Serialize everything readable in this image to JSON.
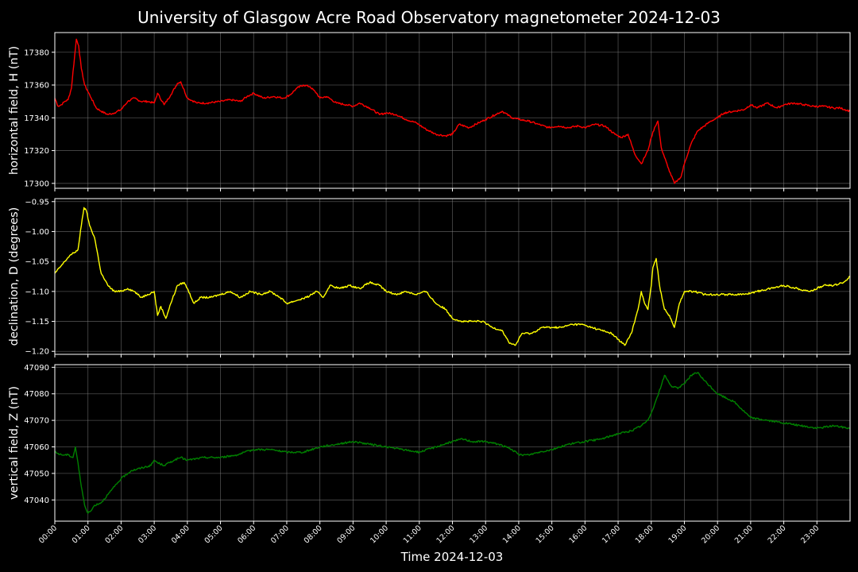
{
  "figure": {
    "title": "University of Glasgow Acre Road Observatory magnetometer 2024-12-03",
    "xlabel": "Time 2024-12-03"
  },
  "colors": {
    "background": "#000000",
    "axis": "#ffffff",
    "grid": "#808080",
    "h_line": "#ff0000",
    "d_line": "#ffff00",
    "z_line": "#008000"
  },
  "chart_data": [
    {
      "type": "line",
      "ylabel": "horizontal field, H (nT)",
      "xlim": [
        0,
        24
      ],
      "ylim": [
        17297,
        17392
      ],
      "yticks": [
        17300,
        17320,
        17340,
        17360,
        17380
      ],
      "ytick_labels": [
        "17300",
        "17320",
        "17340",
        "17360",
        "17380"
      ],
      "xticks": [
        0,
        1,
        2,
        3,
        4,
        5,
        6,
        7,
        8,
        9,
        10,
        11,
        12,
        13,
        14,
        15,
        16,
        17,
        18,
        19,
        20,
        21,
        22,
        23
      ],
      "xtick_labels": [],
      "grid": true,
      "series": [
        {
          "color": "#ff0000",
          "x": [
            0,
            0.1,
            0.2,
            0.3,
            0.4,
            0.5,
            0.6,
            0.65,
            0.72,
            0.8,
            0.9,
            1.0,
            1.1,
            1.25,
            1.4,
            1.6,
            1.8,
            2.0,
            2.2,
            2.4,
            2.6,
            2.8,
            3.0,
            3.1,
            3.3,
            3.5,
            3.7,
            3.8,
            4.0,
            4.3,
            4.6,
            5.0,
            5.3,
            5.6,
            5.8,
            6.0,
            6.3,
            6.6,
            6.9,
            7.1,
            7.3,
            7.5,
            7.7,
            7.9,
            8.0,
            8.2,
            8.5,
            8.8,
            9.0,
            9.2,
            9.5,
            9.8,
            10.0,
            10.3,
            10.6,
            10.9,
            11.2,
            11.5,
            11.8,
            12.0,
            12.2,
            12.5,
            12.8,
            13.0,
            13.3,
            13.5,
            13.8,
            14.0,
            14.3,
            14.6,
            14.9,
            15.2,
            15.5,
            15.8,
            16.0,
            16.3,
            16.6,
            16.9,
            17.1,
            17.3,
            17.5,
            17.7,
            17.9,
            18.0,
            18.1,
            18.2,
            18.3,
            18.5,
            18.7,
            18.8,
            18.9,
            19.0,
            19.2,
            19.4,
            19.6,
            19.8,
            20.0,
            20.2,
            20.5,
            20.8,
            21.0,
            21.2,
            21.5,
            21.8,
            22.0,
            22.3,
            22.6,
            22.9,
            23.2,
            23.5,
            23.7,
            24.0
          ],
          "y": [
            17352,
            17347,
            17348,
            17350,
            17351,
            17358,
            17378,
            17388,
            17384,
            17370,
            17360,
            17356,
            17352,
            17346,
            17344,
            17342,
            17343,
            17345,
            17350,
            17352,
            17350,
            17350,
            17349,
            17355,
            17348,
            17354,
            17361,
            17362,
            17352,
            17349,
            17349,
            17350,
            17351,
            17350,
            17353,
            17355,
            17352,
            17353,
            17352,
            17354,
            17358,
            17360,
            17359,
            17355,
            17352,
            17353,
            17349,
            17348,
            17347,
            17349,
            17346,
            17342,
            17343,
            17342,
            17339,
            17337,
            17333,
            17330,
            17329,
            17330,
            17336,
            17334,
            17337,
            17339,
            17342,
            17344,
            17340,
            17339,
            17338,
            17336,
            17334,
            17335,
            17334,
            17335,
            17334,
            17336,
            17335,
            17330,
            17328,
            17330,
            17318,
            17312,
            17320,
            17328,
            17334,
            17338,
            17322,
            17310,
            17300,
            17302,
            17304,
            17312,
            17324,
            17332,
            17335,
            17338,
            17340,
            17343,
            17344,
            17345,
            17348,
            17346,
            17349,
            17346,
            17348,
            17349,
            17348,
            17347,
            17347,
            17346,
            17346,
            17344
          ]
        }
      ]
    },
    {
      "type": "line",
      "ylabel": "declination, D (degrees)",
      "xlim": [
        0,
        24
      ],
      "ylim": [
        -1.205,
        -0.945
      ],
      "yticks": [
        -1.2,
        -1.15,
        -1.1,
        -1.05,
        -1.0,
        -0.95
      ],
      "ytick_labels": [
        "−1.20",
        "−1.15",
        "−1.10",
        "−1.05",
        "−1.00",
        "−0.95"
      ],
      "xticks": [
        0,
        1,
        2,
        3,
        4,
        5,
        6,
        7,
        8,
        9,
        10,
        11,
        12,
        13,
        14,
        15,
        16,
        17,
        18,
        19,
        20,
        21,
        22,
        23
      ],
      "xtick_labels": [],
      "grid": true,
      "series": [
        {
          "color": "#ffff00",
          "x": [
            0,
            0.15,
            0.3,
            0.45,
            0.6,
            0.7,
            0.8,
            0.88,
            0.95,
            1.05,
            1.2,
            1.4,
            1.6,
            1.8,
            2.0,
            2.2,
            2.4,
            2.6,
            2.8,
            3.0,
            3.1,
            3.2,
            3.35,
            3.5,
            3.7,
            3.9,
            4.0,
            4.2,
            4.4,
            4.7,
            5.0,
            5.3,
            5.6,
            5.9,
            6.2,
            6.5,
            6.8,
            7.0,
            7.3,
            7.6,
            7.9,
            8.1,
            8.3,
            8.6,
            8.9,
            9.2,
            9.5,
            9.8,
            10.0,
            10.3,
            10.6,
            10.9,
            11.2,
            11.5,
            11.8,
            12.0,
            12.3,
            12.6,
            12.9,
            13.2,
            13.5,
            13.7,
            13.9,
            14.1,
            14.4,
            14.7,
            15.0,
            15.3,
            15.6,
            15.9,
            16.2,
            16.5,
            16.8,
            17.0,
            17.2,
            17.4,
            17.6,
            17.7,
            17.8,
            17.9,
            18.0,
            18.05,
            18.15,
            18.25,
            18.4,
            18.55,
            18.7,
            18.85,
            19.0,
            19.3,
            19.6,
            20.0,
            20.4,
            20.8,
            21.2,
            21.6,
            22.0,
            22.4,
            22.8,
            23.2,
            23.5,
            23.8,
            24.0
          ],
          "y": [
            -1.07,
            -1.06,
            -1.05,
            -1.04,
            -1.035,
            -1.03,
            -0.99,
            -0.96,
            -0.965,
            -0.99,
            -1.01,
            -1.07,
            -1.09,
            -1.1,
            -1.1,
            -1.095,
            -1.1,
            -1.11,
            -1.105,
            -1.1,
            -1.14,
            -1.125,
            -1.145,
            -1.12,
            -1.09,
            -1.085,
            -1.095,
            -1.12,
            -1.11,
            -1.11,
            -1.105,
            -1.1,
            -1.11,
            -1.1,
            -1.105,
            -1.1,
            -1.11,
            -1.12,
            -1.115,
            -1.11,
            -1.1,
            -1.11,
            -1.09,
            -1.095,
            -1.09,
            -1.095,
            -1.085,
            -1.09,
            -1.1,
            -1.105,
            -1.1,
            -1.105,
            -1.1,
            -1.12,
            -1.13,
            -1.145,
            -1.15,
            -1.15,
            -1.15,
            -1.16,
            -1.165,
            -1.185,
            -1.19,
            -1.17,
            -1.17,
            -1.16,
            -1.16,
            -1.16,
            -1.155,
            -1.155,
            -1.16,
            -1.165,
            -1.17,
            -1.18,
            -1.19,
            -1.17,
            -1.13,
            -1.1,
            -1.12,
            -1.13,
            -1.09,
            -1.06,
            -1.045,
            -1.09,
            -1.13,
            -1.14,
            -1.16,
            -1.12,
            -1.1,
            -1.1,
            -1.105,
            -1.105,
            -1.105,
            -1.105,
            -1.1,
            -1.095,
            -1.09,
            -1.095,
            -1.1,
            -1.09,
            -1.09,
            -1.085,
            -1.075
          ]
        }
      ]
    },
    {
      "type": "line",
      "ylabel": "vertical field, Z (nT)",
      "xlim": [
        0,
        24
      ],
      "ylim": [
        47032,
        47091
      ],
      "yticks": [
        47040,
        47050,
        47060,
        47070,
        47080,
        47090
      ],
      "ytick_labels": [
        "47040",
        "47050",
        "47060",
        "47070",
        "47080",
        "47090"
      ],
      "xticks": [
        0,
        1,
        2,
        3,
        4,
        5,
        6,
        7,
        8,
        9,
        10,
        11,
        12,
        13,
        14,
        15,
        16,
        17,
        18,
        19,
        20,
        21,
        22,
        23
      ],
      "xtick_labels": [
        "00:00",
        "01:00",
        "02:00",
        "03:00",
        "04:00",
        "05:00",
        "06:00",
        "07:00",
        "08:00",
        "09:00",
        "10:00",
        "11:00",
        "12:00",
        "13:00",
        "14:00",
        "15:00",
        "16:00",
        "17:00",
        "18:00",
        "19:00",
        "20:00",
        "21:00",
        "22:00",
        "23:00"
      ],
      "grid": true,
      "series": [
        {
          "color": "#008000",
          "x": [
            0,
            0.2,
            0.4,
            0.55,
            0.62,
            0.7,
            0.8,
            0.9,
            1.0,
            1.1,
            1.2,
            1.4,
            1.6,
            1.8,
            2.0,
            2.3,
            2.6,
            2.9,
            3.0,
            3.1,
            3.3,
            3.6,
            3.8,
            4.0,
            4.5,
            5.0,
            5.5,
            6.0,
            6.5,
            7.0,
            7.5,
            8.0,
            8.5,
            9.0,
            9.5,
            10.0,
            10.5,
            11.0,
            11.5,
            12.0,
            12.3,
            12.6,
            13.0,
            13.4,
            13.8,
            14.0,
            14.3,
            14.6,
            15.0,
            15.5,
            16.0,
            16.5,
            17.0,
            17.4,
            17.7,
            17.9,
            18.1,
            18.3,
            18.4,
            18.6,
            18.8,
            19.0,
            19.2,
            19.4,
            19.6,
            20.0,
            20.5,
            21.0,
            21.5,
            22.0,
            22.5,
            23.0,
            23.5,
            24.0
          ],
          "y": [
            47058,
            47057,
            47057,
            47056,
            47060,
            47054,
            47045,
            47038,
            47035,
            47036,
            47038,
            47039,
            47042,
            47045,
            47048,
            47051,
            47052,
            47053,
            47055,
            47054,
            47053,
            47055,
            47056,
            47055,
            47056,
            47056,
            47057,
            47059,
            47059,
            47058,
            47058,
            47060,
            47061,
            47062,
            47061,
            47060,
            47059,
            47058,
            47060,
            47062,
            47063,
            47062,
            47062,
            47061,
            47059,
            47057,
            47057,
            47058,
            47059,
            47061,
            47062,
            47063,
            47065,
            47066,
            47068,
            47070,
            47076,
            47083,
            47087,
            47083,
            47082,
            47084,
            47087,
            47088,
            47085,
            47080,
            47077,
            47071,
            47070,
            47069,
            47068,
            47067,
            47068,
            47067
          ]
        }
      ]
    }
  ]
}
